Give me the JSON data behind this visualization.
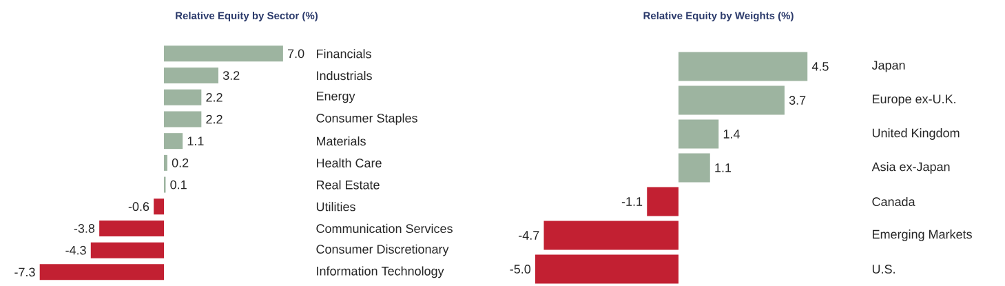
{
  "chart_data": [
    {
      "type": "bar",
      "orientation": "horizontal",
      "title": "Relative Equity by Sector (%)",
      "categories": [
        "Financials",
        "Industrials",
        "Energy",
        "Consumer Staples",
        "Materials",
        "Health Care",
        "Real Estate",
        "Utilities",
        "Communication Services",
        "Consumer Discretionary",
        "Information Technology"
      ],
      "values": [
        7.0,
        3.2,
        2.2,
        2.2,
        1.1,
        0.2,
        0.1,
        -0.6,
        -3.8,
        -4.3,
        -7.3
      ],
      "value_labels": [
        "7.0",
        "3.2",
        "2.2",
        "2.2",
        "1.1",
        "0.2",
        "0.1",
        "-0.6",
        "-3.8",
        "-4.3",
        "-7.3"
      ],
      "colors": [
        "#9db4a0",
        "#9db4a0",
        "#9db4a0",
        "#9db4a0",
        "#9db4a0",
        "#9db4a0",
        "#9db4a0",
        "#c22032",
        "#c22032",
        "#c22032",
        "#c22032"
      ],
      "tick_labels": "y"
    },
    {
      "type": "bar",
      "orientation": "horizontal",
      "title": "Relative Equity by Weights (%)",
      "categories": [
        "Japan",
        "Europe ex-U.K.",
        "United Kingdom",
        "Asia ex-Japan",
        "Canada",
        "Emerging Markets",
        "U.S."
      ],
      "values": [
        4.5,
        3.7,
        1.4,
        1.1,
        -1.1,
        -4.7,
        -5.0
      ],
      "value_labels": [
        "4.5",
        "3.7",
        "1.4",
        "1.1",
        "-1.1",
        "-4.7",
        "-5.0"
      ],
      "colors": [
        "#9db4a0",
        "#9db4a0",
        "#9db4a0",
        "#9db4a0",
        "#c22032",
        "#c22032",
        "#c22032"
      ],
      "tick_labels": "y"
    }
  ]
}
